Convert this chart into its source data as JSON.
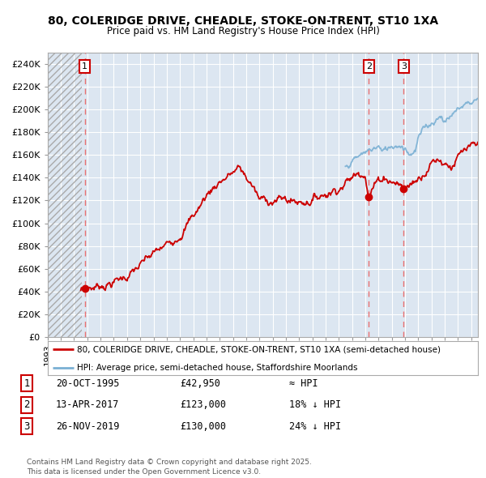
{
  "title_line1": "80, COLERIDGE DRIVE, CHEADLE, STOKE-ON-TRENT, ST10 1XA",
  "title_line2": "Price paid vs. HM Land Registry's House Price Index (HPI)",
  "ylabel_ticks": [
    "£0",
    "£20K",
    "£40K",
    "£60K",
    "£80K",
    "£100K",
    "£120K",
    "£140K",
    "£160K",
    "£180K",
    "£200K",
    "£220K",
    "£240K"
  ],
  "ylabel_values": [
    0,
    20000,
    40000,
    60000,
    80000,
    100000,
    120000,
    140000,
    160000,
    180000,
    200000,
    220000,
    240000
  ],
  "xmin": 1993.0,
  "xmax": 2025.5,
  "ymin": 0,
  "ymax": 250000,
  "sale_dates": [
    1995.8,
    2017.28,
    2019.9
  ],
  "sale_prices": [
    42950,
    123000,
    130000
  ],
  "sale_labels": [
    "1",
    "2",
    "3"
  ],
  "plot_bg": "#dce6f1",
  "fig_bg": "#ffffff",
  "grid_color": "#ffffff",
  "line_color_red": "#cc0000",
  "line_color_blue": "#7ab0d4",
  "dashed_line_color": "#e87070",
  "legend_entries": [
    "80, COLERIDGE DRIVE, CHEADLE, STOKE-ON-TRENT, ST10 1XA (semi-detached house)",
    "HPI: Average price, semi-detached house, Staffordshire Moorlands"
  ],
  "table_rows": [
    {
      "num": "1",
      "date": "20-OCT-1995",
      "price": "£42,950",
      "hpi": "≈ HPI"
    },
    {
      "num": "2",
      "date": "13-APR-2017",
      "price": "£123,000",
      "hpi": "18% ↓ HPI"
    },
    {
      "num": "3",
      "date": "26-NOV-2019",
      "price": "£130,000",
      "hpi": "24% ↓ HPI"
    }
  ],
  "footnote": "Contains HM Land Registry data © Crown copyright and database right 2025.\nThis data is licensed under the Open Government Licence v3.0."
}
